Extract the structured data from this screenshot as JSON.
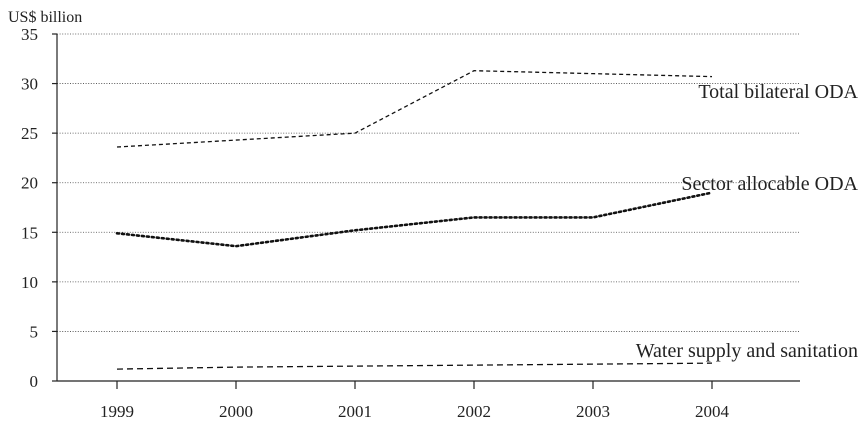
{
  "chart_data": {
    "type": "line",
    "y_unit_label": "US$ billion",
    "categories": [
      "1999",
      "2000",
      "2001",
      "2002",
      "2003",
      "2004"
    ],
    "ylim": [
      0,
      35
    ],
    "yticks": [
      "0",
      "5",
      "10",
      "15",
      "20",
      "25",
      "30",
      "35"
    ],
    "grid": true,
    "series": [
      {
        "name": "Total bilateral ODA",
        "values": [
          23.6,
          24.3,
          25.0,
          31.3,
          31.0,
          30.7
        ],
        "style": "dashed"
      },
      {
        "name": "Sector allocable ODA",
        "values": [
          14.9,
          13.6,
          15.2,
          16.5,
          16.5,
          19.0
        ],
        "style": "dotted"
      },
      {
        "name": "Water supply and sanitation",
        "values": [
          1.2,
          1.4,
          1.5,
          1.6,
          1.7,
          1.8
        ],
        "style": "dashed-wide"
      }
    ]
  }
}
